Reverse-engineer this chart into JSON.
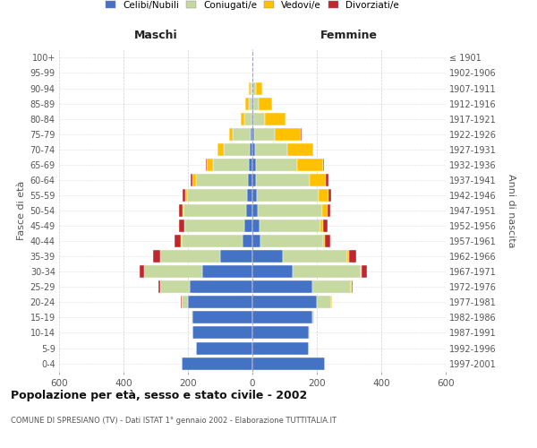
{
  "age_groups": [
    "0-4",
    "5-9",
    "10-14",
    "15-19",
    "20-24",
    "25-29",
    "30-34",
    "35-39",
    "40-44",
    "45-49",
    "50-54",
    "55-59",
    "60-64",
    "65-69",
    "70-74",
    "75-79",
    "80-84",
    "85-89",
    "90-94",
    "95-99",
    "100+"
  ],
  "birth_years": [
    "1997-2001",
    "1992-1996",
    "1987-1991",
    "1982-1986",
    "1977-1981",
    "1972-1976",
    "1967-1971",
    "1962-1966",
    "1957-1961",
    "1952-1956",
    "1947-1951",
    "1942-1946",
    "1937-1941",
    "1932-1936",
    "1927-1931",
    "1922-1926",
    "1917-1921",
    "1912-1916",
    "1907-1911",
    "1902-1906",
    "≤ 1901"
  ],
  "maschi": {
    "celibe": [
      220,
      175,
      185,
      185,
      200,
      195,
      155,
      100,
      30,
      25,
      20,
      18,
      15,
      12,
      8,
      5,
      3,
      2,
      1,
      0,
      0
    ],
    "coniugato": [
      0,
      1,
      2,
      5,
      20,
      90,
      180,
      185,
      190,
      185,
      195,
      185,
      160,
      110,
      80,
      55,
      22,
      10,
      5,
      1,
      0
    ],
    "vedovo": [
      0,
      0,
      0,
      0,
      0,
      1,
      2,
      2,
      2,
      2,
      3,
      5,
      10,
      20,
      20,
      12,
      12,
      10,
      5,
      0,
      0
    ],
    "divorziato": [
      0,
      0,
      0,
      0,
      1,
      5,
      12,
      22,
      20,
      15,
      10,
      10,
      8,
      2,
      1,
      1,
      0,
      0,
      0,
      0,
      0
    ]
  },
  "femmine": {
    "nubile": [
      225,
      175,
      175,
      185,
      200,
      185,
      125,
      95,
      25,
      22,
      18,
      15,
      12,
      10,
      8,
      5,
      3,
      2,
      1,
      0,
      0
    ],
    "coniugata": [
      0,
      1,
      2,
      8,
      45,
      120,
      210,
      200,
      195,
      190,
      200,
      190,
      165,
      130,
      100,
      65,
      35,
      18,
      10,
      2,
      0
    ],
    "vedova": [
      0,
      0,
      0,
      0,
      1,
      2,
      3,
      5,
      5,
      8,
      15,
      30,
      50,
      80,
      80,
      80,
      65,
      40,
      20,
      2,
      0
    ],
    "divorziata": [
      0,
      0,
      0,
      0,
      2,
      5,
      18,
      22,
      18,
      12,
      10,
      10,
      8,
      3,
      2,
      2,
      1,
      0,
      0,
      0,
      0
    ]
  },
  "colors": {
    "celibe": "#4472c4",
    "coniugato": "#c5d9a0",
    "vedovo": "#ffc000",
    "divorziato": "#c0272d"
  },
  "legend_labels": [
    "Celibi/Nubili",
    "Coniugati/e",
    "Vedovi/e",
    "Divorziati/e"
  ],
  "title": "Popolazione per età, sesso e stato civile - 2002",
  "subtitle": "COMUNE DI SPRESIANO (TV) - Dati ISTAT 1° gennaio 2002 - Elaborazione TUTTITALIA.IT",
  "label_maschi": "Maschi",
  "label_femmine": "Femmine",
  "ylabel_left": "Fasce di età",
  "ylabel_right": "Anni di nascita",
  "xlim": 600,
  "background_color": "#ffffff",
  "grid_color": "#bbbbbb"
}
